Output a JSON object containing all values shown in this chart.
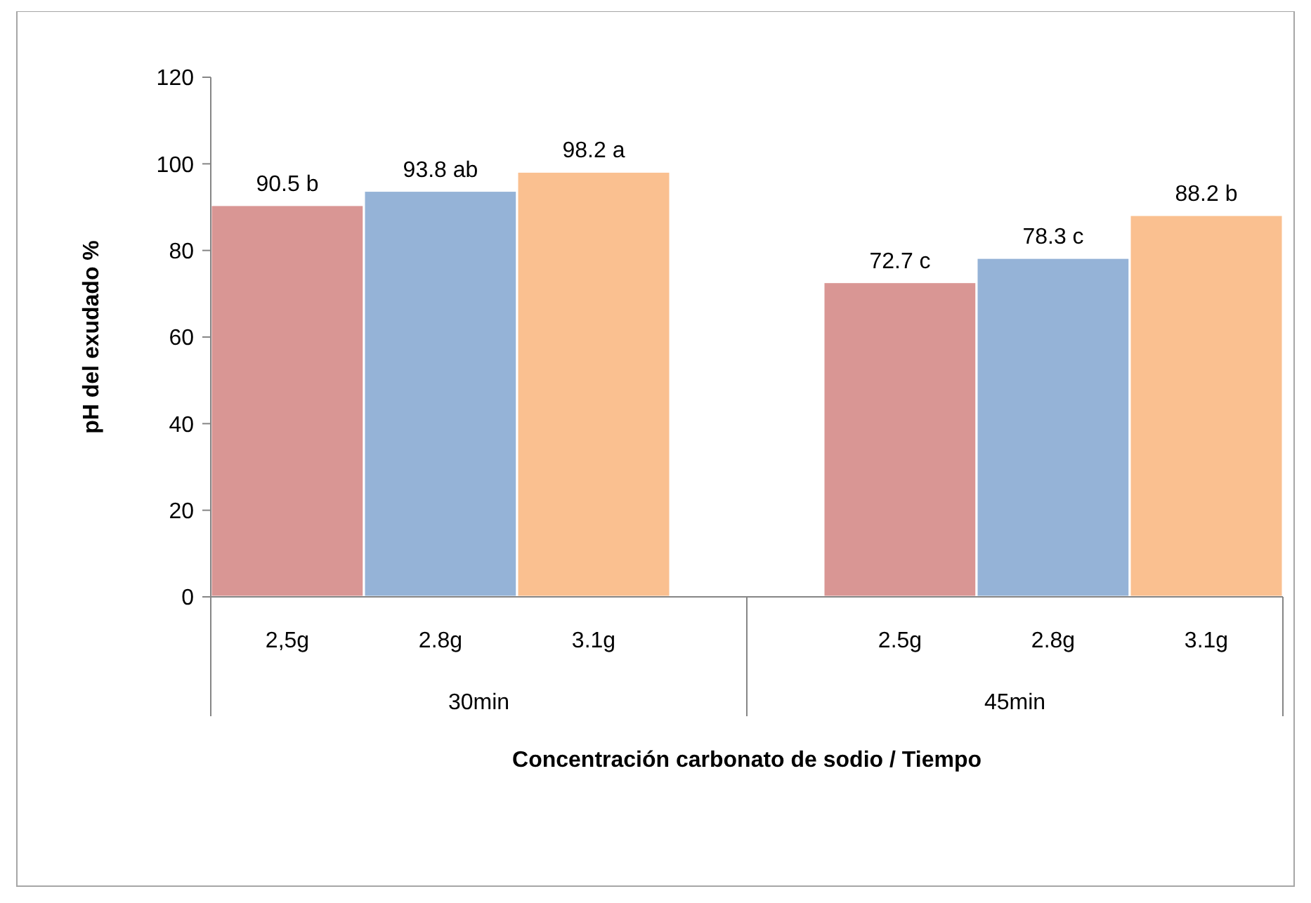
{
  "chart_data": {
    "type": "bar",
    "ylabel": "pH del exudado %",
    "xlabel": "Concentración carbonato de sodio / Tiempo",
    "categories": [
      "2,5g",
      "2.8g",
      "3.1g",
      null,
      "2.5g",
      "2.8g",
      "3.1g"
    ],
    "values": [
      90.5,
      93.8,
      98.2,
      null,
      72.7,
      78.3,
      88.2
    ],
    "colors": [
      "#d99694",
      "#95b3d7",
      "#fac090",
      null,
      "#d99694",
      "#95b3d7",
      "#fac090"
    ],
    "value_labels": [
      "90.5 b",
      "93.8 ab",
      "98.2 a",
      null,
      "72.7 c",
      "78.3 c",
      "88.2 b"
    ],
    "annotations": [
      "30min",
      "45min"
    ],
    "ylim": [
      0,
      120
    ],
    "yticks": [
      0,
      20,
      40,
      60,
      80,
      100,
      120
    ]
  }
}
